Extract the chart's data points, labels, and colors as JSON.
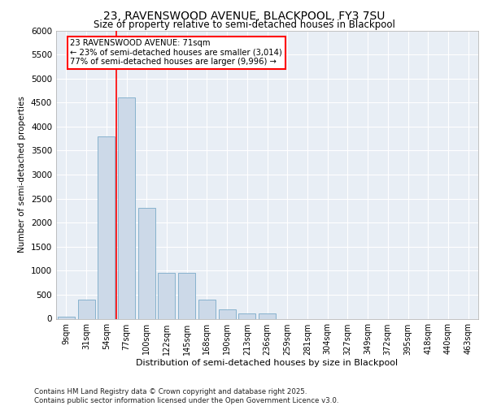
{
  "title1": "23, RAVENSWOOD AVENUE, BLACKPOOL, FY3 7SU",
  "title2": "Size of property relative to semi-detached houses in Blackpool",
  "xlabel": "Distribution of semi-detached houses by size in Blackpool",
  "ylabel": "Number of semi-detached properties",
  "categories": [
    "9sqm",
    "31sqm",
    "54sqm",
    "77sqm",
    "100sqm",
    "122sqm",
    "145sqm",
    "168sqm",
    "190sqm",
    "213sqm",
    "236sqm",
    "259sqm",
    "281sqm",
    "304sqm",
    "327sqm",
    "349sqm",
    "372sqm",
    "395sqm",
    "418sqm",
    "440sqm",
    "463sqm"
  ],
  "values": [
    50,
    390,
    3800,
    4600,
    2300,
    960,
    960,
    390,
    200,
    110,
    110,
    0,
    0,
    0,
    0,
    0,
    0,
    0,
    0,
    0,
    0
  ],
  "bar_color": "#ccd9e8",
  "bar_edge_color": "#7aaac8",
  "vline_x": 2.5,
  "vline_color": "red",
  "ylim": [
    0,
    6000
  ],
  "yticks": [
    0,
    500,
    1000,
    1500,
    2000,
    2500,
    3000,
    3500,
    4000,
    4500,
    5000,
    5500,
    6000
  ],
  "annotation_title": "23 RAVENSWOOD AVENUE: 71sqm",
  "annotation_line1": "← 23% of semi-detached houses are smaller (3,014)",
  "annotation_line2": "77% of semi-detached houses are larger (9,996) →",
  "footer1": "Contains HM Land Registry data © Crown copyright and database right 2025.",
  "footer2": "Contains public sector information licensed under the Open Government Licence v3.0.",
  "plot_bg_color": "#e8eef5"
}
